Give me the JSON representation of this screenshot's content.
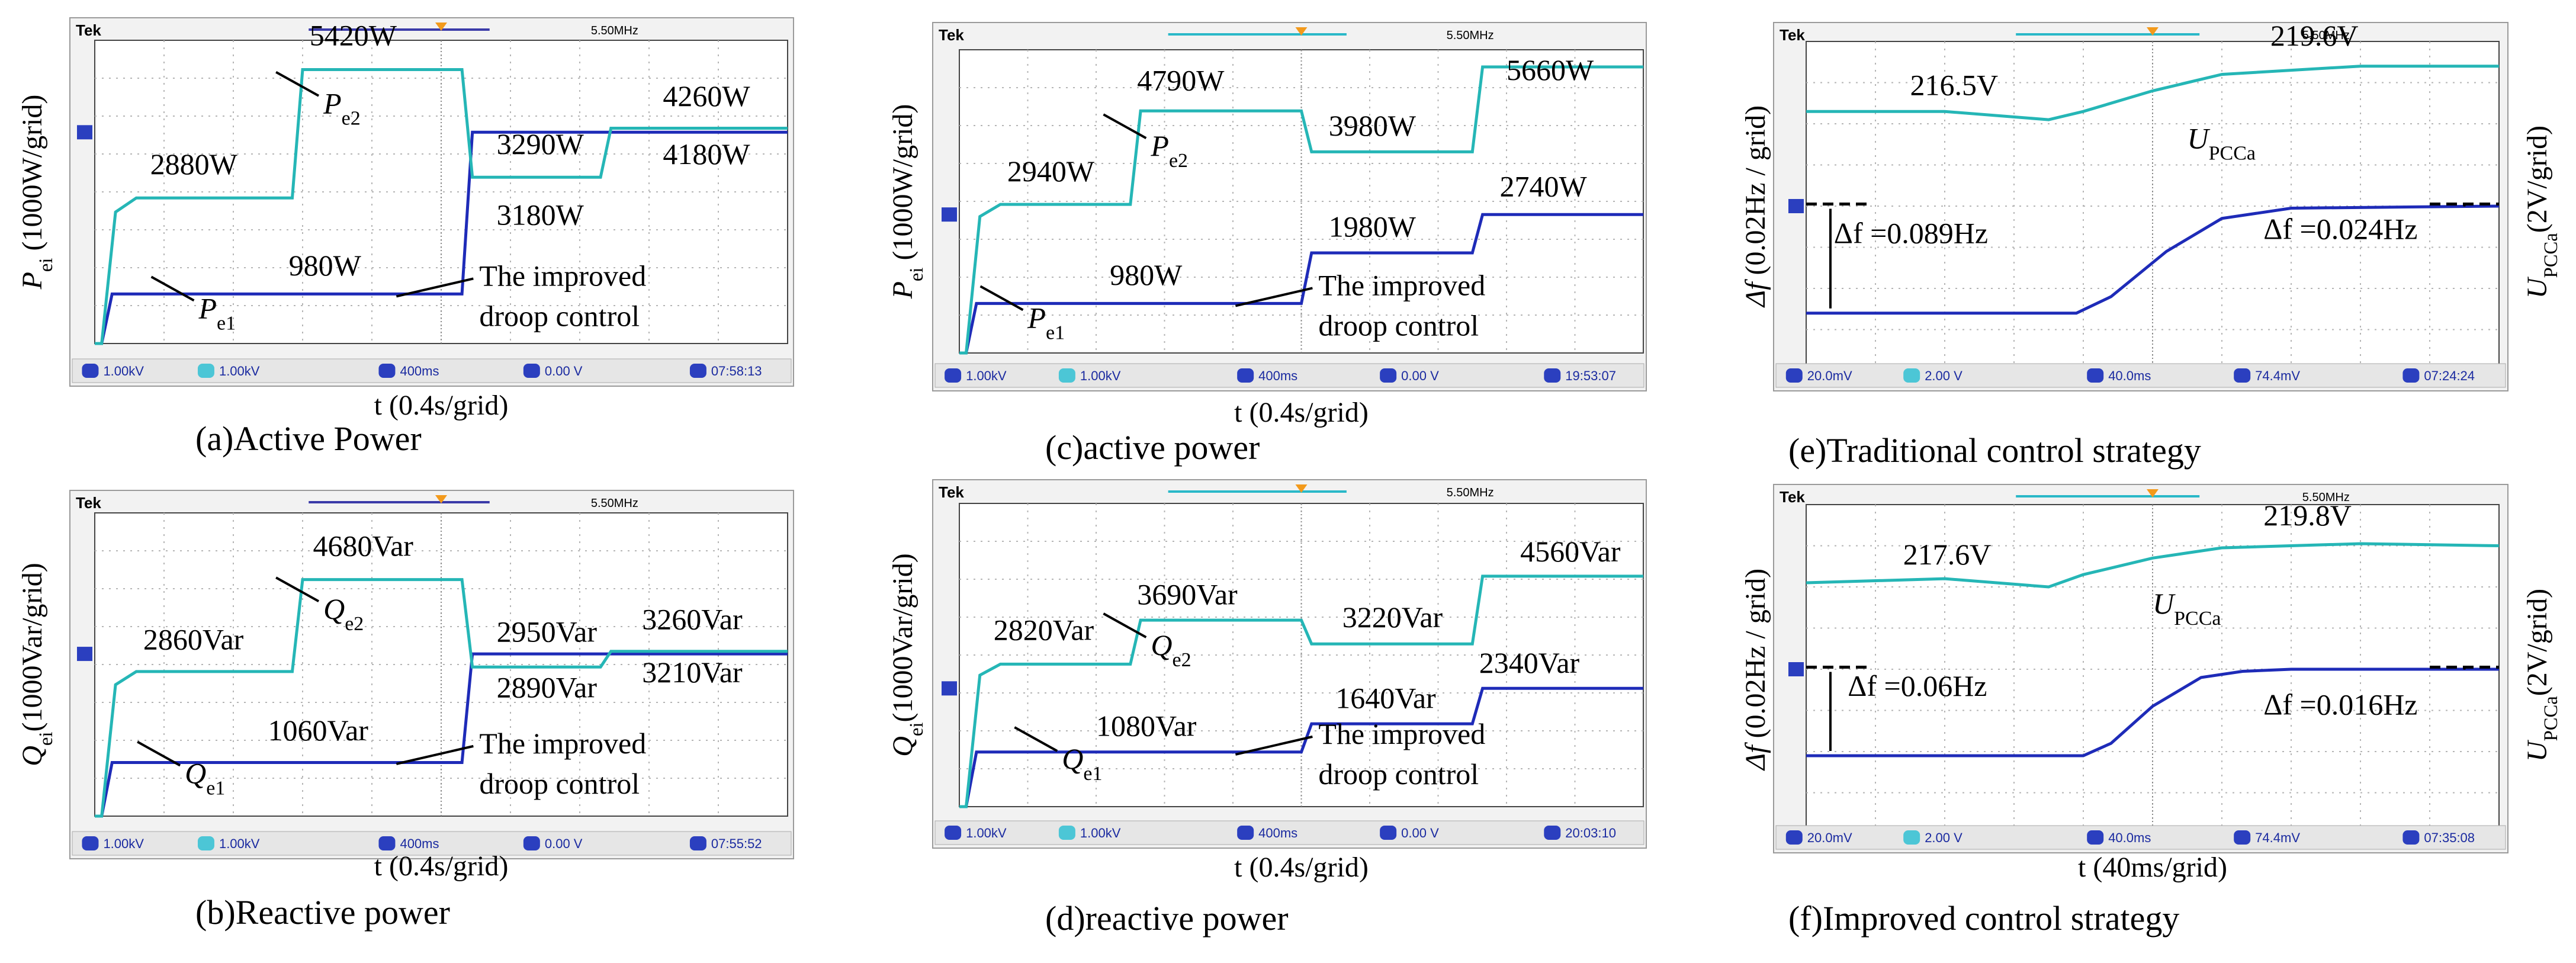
{
  "figure": {
    "caption_labels": [
      "(a)Active Power",
      "(b)Reactive power",
      "(c)active power",
      "(d)reactive power",
      "(e)Traditional control strategy",
      "(f)Improved control strategy"
    ]
  },
  "chart_data": [
    {
      "id": "a",
      "type": "line",
      "title": "(a)Active Power",
      "scope": {
        "brand": "Tek",
        "freq": "5.50MHz",
        "status": [
          "1.00kV",
          "1.00kV",
          "400ms",
          "0.00 V",
          "07:58:13"
        ]
      },
      "xlabel": "t (0.4s/grid)",
      "ylabel": "Pei (1000W/grid)",
      "ylabel_parts": {
        "main": "P",
        "sub": "ei",
        "rest": " (1000W/grid)"
      },
      "x_grid_divisions": 10,
      "x_unit": "div",
      "xlim": [
        0,
        10
      ],
      "ylim": [
        0,
        6000
      ],
      "series": [
        {
          "name": "Pe1",
          "color": "#1e2bb8",
          "x": [
            0,
            0.1,
            0.25,
            5.3,
            5.45,
            10
          ],
          "values": [
            0,
            0,
            980,
            980,
            4180,
            4180
          ]
        },
        {
          "name": "Pe2",
          "color": "#25b6b6",
          "x": [
            0,
            0.1,
            0.3,
            0.6,
            2.85,
            3.0,
            3.15,
            5.3,
            5.45,
            7.3,
            7.45,
            10
          ],
          "values": [
            0,
            0,
            2600,
            2880,
            2880,
            5420,
            5420,
            5420,
            3290,
            3290,
            4260,
            4260
          ]
        }
      ],
      "annotations": [
        "2880W",
        "5420W",
        "3290W",
        "3180W",
        "4260W",
        "4180W",
        "980W",
        "The improved",
        "droop control"
      ],
      "series_labels": [
        {
          "main": "P",
          "sub": "e2"
        },
        {
          "main": "P",
          "sub": "e1"
        }
      ]
    },
    {
      "id": "b",
      "type": "line",
      "title": "(b)Reactive power",
      "scope": {
        "brand": "Tek",
        "freq": "5.50MHz",
        "status": [
          "1.00kV",
          "1.00kV",
          "400ms",
          "0.00 V",
          "07:55:52"
        ]
      },
      "xlabel": "t (0.4s/grid)",
      "ylabel": "Qei(1000Var/grid)",
      "ylabel_parts": {
        "main": "Q",
        "sub": "ei",
        "rest": "(1000Var/grid)"
      },
      "x_grid_divisions": 10,
      "x_unit": "div",
      "xlim": [
        0,
        10
      ],
      "ylim": [
        0,
        6000
      ],
      "series": [
        {
          "name": "Qe1",
          "color": "#1e2bb8",
          "x": [
            0,
            0.1,
            0.25,
            5.3,
            5.45,
            10
          ],
          "values": [
            0,
            0,
            1060,
            1060,
            3210,
            3210
          ]
        },
        {
          "name": "Qe2",
          "color": "#25b6b6",
          "x": [
            0,
            0.1,
            0.3,
            0.6,
            2.85,
            3.0,
            3.15,
            5.3,
            5.45,
            7.3,
            7.45,
            10
          ],
          "values": [
            0,
            0,
            2600,
            2860,
            2860,
            4680,
            4680,
            4680,
            2950,
            2950,
            3260,
            3260
          ]
        }
      ],
      "annotations": [
        "2860Var",
        "4680Var",
        "2950Var",
        "2890Var",
        "3260Var",
        "3210Var",
        "1060Var",
        "The improved",
        "droop control"
      ],
      "series_labels": [
        {
          "main": "Q",
          "sub": "e2"
        },
        {
          "main": "Q",
          "sub": "e1"
        }
      ]
    },
    {
      "id": "c",
      "type": "line",
      "title": "(c)active power",
      "scope": {
        "brand": "Tek",
        "freq": "5.50MHz",
        "status": [
          "1.00kV",
          "1.00kV",
          "400ms",
          "0.00 V",
          "19:53:07"
        ]
      },
      "xlabel": "t (0.4s/grid)",
      "ylabel": "Pei (1000W/grid)",
      "ylabel_parts": {
        "main": "P",
        "sub": "ei",
        "rest": " (1000W/grid)"
      },
      "x_grid_divisions": 10,
      "x_unit": "div",
      "xlim": [
        0,
        10
      ],
      "ylim": [
        0,
        6000
      ],
      "series": [
        {
          "name": "Pe1",
          "color": "#1e2bb8",
          "x": [
            0,
            0.1,
            0.25,
            5.0,
            5.15,
            7.5,
            7.65,
            10
          ],
          "values": [
            0,
            0,
            980,
            980,
            1980,
            1980,
            2740,
            2740
          ]
        },
        {
          "name": "Pe2",
          "color": "#25b6b6",
          "x": [
            0,
            0.1,
            0.3,
            0.6,
            2.5,
            2.65,
            5.0,
            5.15,
            7.5,
            7.65,
            10
          ],
          "values": [
            0,
            0,
            2700,
            2940,
            2940,
            4790,
            4790,
            3980,
            3980,
            5660,
            5660
          ]
        }
      ],
      "annotations": [
        "2940W",
        "4790W",
        "3980W",
        "5660W",
        "1980W",
        "2740W",
        "980W",
        "The improved",
        "droop control"
      ],
      "series_labels": [
        {
          "main": "P",
          "sub": "e2"
        },
        {
          "main": "P",
          "sub": "e1"
        }
      ]
    },
    {
      "id": "d",
      "type": "line",
      "title": "(d)reactive power",
      "scope": {
        "brand": "Tek",
        "freq": "5.50MHz",
        "status": [
          "1.00kV",
          "1.00kV",
          "400ms",
          "0.00 V",
          "20:03:10"
        ]
      },
      "xlabel": "t (0.4s/grid)",
      "ylabel": "Qei(1000Var/grid)",
      "ylabel_parts": {
        "main": "Q",
        "sub": "ei",
        "rest": "(1000Var/grid)"
      },
      "x_grid_divisions": 10,
      "x_unit": "div",
      "xlim": [
        0,
        10
      ],
      "ylim": [
        0,
        6000
      ],
      "series": [
        {
          "name": "Qe1",
          "color": "#1e2bb8",
          "x": [
            0,
            0.1,
            0.25,
            5.0,
            5.15,
            7.5,
            7.65,
            10
          ],
          "values": [
            0,
            0,
            1080,
            1080,
            1640,
            1640,
            2340,
            2340
          ]
        },
        {
          "name": "Qe2",
          "color": "#25b6b6",
          "x": [
            0,
            0.1,
            0.3,
            0.6,
            2.5,
            2.65,
            5.0,
            5.15,
            7.5,
            7.65,
            10
          ],
          "values": [
            0,
            0,
            2600,
            2820,
            2820,
            3690,
            3690,
            3220,
            3220,
            4560,
            4560
          ]
        }
      ],
      "annotations": [
        "2820Var",
        "3690Var",
        "3220Var",
        "4560Var",
        "1640Var",
        "2340Var",
        "1080Var",
        "The improved",
        "droop control"
      ],
      "series_labels": [
        {
          "main": "Q",
          "sub": "e2"
        },
        {
          "main": "Q",
          "sub": "e1"
        }
      ]
    },
    {
      "id": "e",
      "type": "line",
      "title": "(e)Traditional control strategy",
      "scope": {
        "brand": "Tek",
        "freq": "5.50MHz",
        "status": [
          "20.0mV",
          "2.00 V",
          "40.0ms",
          "74.4mV",
          "07:24:24"
        ]
      },
      "xlabel": "",
      "ylabel": "Δf (0.02Hz / grid)",
      "ylabel_parts": {
        "main": "Δf",
        "sub": "",
        "rest": " (0.02Hz / grid)"
      },
      "ylabel_right": "UPCCa(2V/grid)",
      "ylabel_right_parts": {
        "main": "U",
        "sub": "PCCa",
        "rest": "(2V/grid)"
      },
      "x_grid_divisions": 10,
      "x_unit": "div",
      "xlim": [
        0,
        10
      ],
      "ylim": [
        -4,
        4
      ],
      "series": [
        {
          "name": "Δf",
          "color": "#1e2bb8",
          "x": [
            0,
            3.9,
            4.4,
            5.2,
            6.0,
            7.0,
            10
          ],
          "values": [
            -2.6,
            -2.6,
            -2.2,
            -1.1,
            -0.3,
            -0.05,
            0
          ]
        },
        {
          "name": "UPCCa",
          "color": "#25b6b6",
          "x": [
            0,
            2.0,
            3.5,
            4.0,
            5.0,
            6.0,
            8.0,
            10
          ],
          "values": [
            2.3,
            2.3,
            2.1,
            2.3,
            2.8,
            3.2,
            3.4,
            3.4
          ]
        }
      ],
      "annotations": [
        "216.5V",
        "219.6V",
        "Δf =0.089Hz",
        "Δf =0.024Hz"
      ],
      "series_labels": [
        {
          "main": "U",
          "sub": "PCCa"
        }
      ]
    },
    {
      "id": "f",
      "type": "line",
      "title": "(f)Improved control strategy",
      "scope": {
        "brand": "Tek",
        "freq": "5.50MHz",
        "status": [
          "20.0mV",
          "2.00 V",
          "40.0ms",
          "74.4mV",
          "07:35:08"
        ]
      },
      "xlabel": "t (40ms/grid)",
      "ylabel": "Δf (0.02Hz / grid)",
      "ylabel_parts": {
        "main": "Δf",
        "sub": "",
        "rest": " (0.02Hz / grid)"
      },
      "ylabel_right": "UPCCa(2V/grid)",
      "ylabel_right_parts": {
        "main": "U",
        "sub": "PCCa",
        "rest": "(2V/grid)"
      },
      "x_grid_divisions": 10,
      "x_unit": "div",
      "xlim": [
        0,
        10
      ],
      "ylim": [
        -4,
        4
      ],
      "series": [
        {
          "name": "Δf",
          "color": "#1e2bb8",
          "x": [
            0,
            4.0,
            4.4,
            5.0,
            5.7,
            6.3,
            7.0,
            10
          ],
          "values": [
            -2.1,
            -2.1,
            -1.8,
            -0.9,
            -0.2,
            -0.05,
            0,
            0
          ]
        },
        {
          "name": "UPCCa",
          "color": "#25b6b6",
          "x": [
            0,
            2.0,
            3.5,
            4.0,
            5.0,
            6.0,
            8.0,
            10
          ],
          "values": [
            2.1,
            2.2,
            2.0,
            2.3,
            2.7,
            2.95,
            3.05,
            3.0
          ]
        }
      ],
      "annotations": [
        "217.6V",
        "219.8V",
        "Δf =0.06Hz",
        "Δf =0.016Hz"
      ],
      "series_labels": [
        {
          "main": "U",
          "sub": "PCCa"
        }
      ]
    }
  ]
}
